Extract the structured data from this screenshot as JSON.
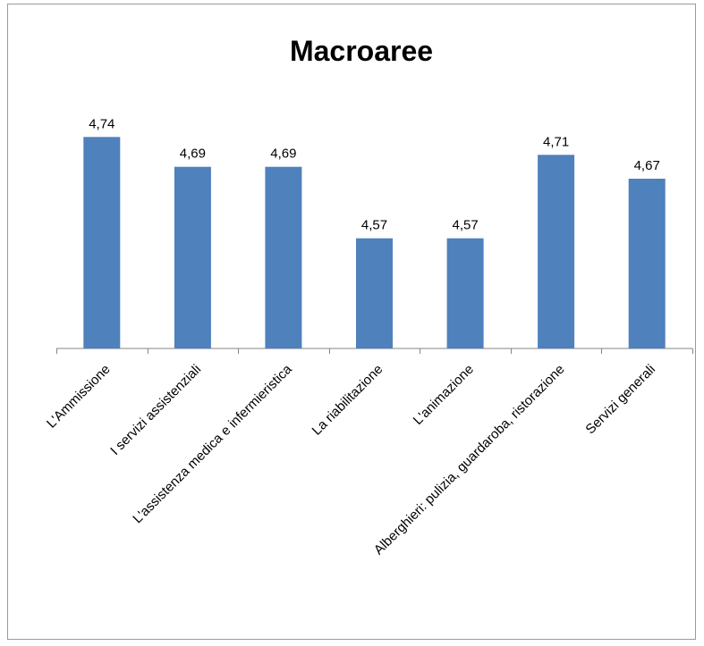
{
  "chart_data": {
    "type": "bar",
    "title": "Macroaree",
    "categories": [
      "L'Ammissione",
      "I servizi assistenziali",
      "L'assistenza medica e infermieristica",
      "La riabilitazione",
      "L'animazione",
      "Alberghieri: pulizia, guardaroba, ristorazione",
      "Servizi generali"
    ],
    "values": [
      4.74,
      4.69,
      4.69,
      4.57,
      4.57,
      4.71,
      4.67
    ],
    "data_labels": [
      "4,74",
      "4,69",
      "4,69",
      "4,57",
      "4,57",
      "4,71",
      "4,67"
    ],
    "ylim": [
      4.385,
      4.76
    ],
    "bar_color": "#4f81bd",
    "axis_color": "#868686",
    "grid": false,
    "legend": "none"
  }
}
